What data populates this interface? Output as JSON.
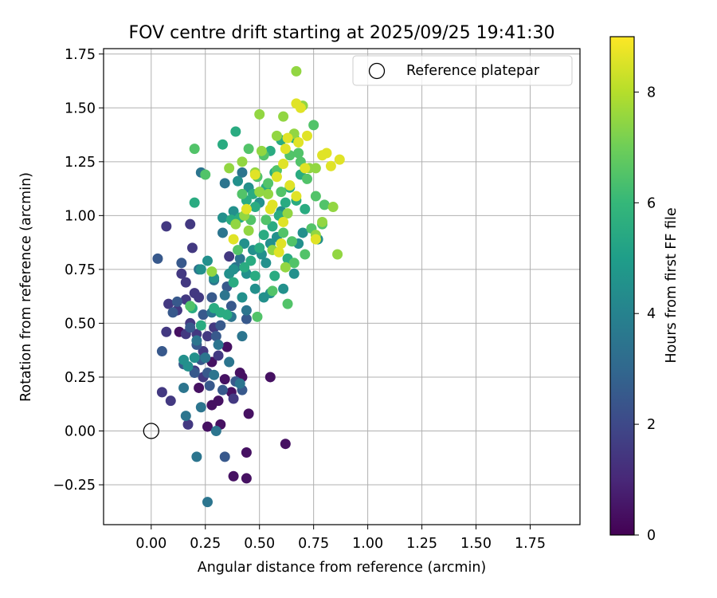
{
  "chart_data": {
    "type": "scatter",
    "title": "FOV centre drift starting at 2025/09/25 19:41:30",
    "xlabel": "Angular distance from reference (arcmin)",
    "ylabel": "Rotation from reference (arcmin)",
    "xlim": [
      -0.22,
      1.98
    ],
    "ylim": [
      -0.435,
      1.775
    ],
    "xticks": [
      0.0,
      0.25,
      0.5,
      0.75,
      1.0,
      1.25,
      1.5,
      1.75
    ],
    "xtick_labels": [
      "0.00",
      "0.25",
      "0.50",
      "0.75",
      "1.00",
      "1.25",
      "1.50",
      "1.75"
    ],
    "yticks": [
      -0.25,
      0.0,
      0.25,
      0.5,
      0.75,
      1.0,
      1.25,
      1.5,
      1.75
    ],
    "ytick_labels": [
      "−0.25",
      "0.00",
      "0.25",
      "0.50",
      "0.75",
      "1.00",
      "1.25",
      "1.50",
      "1.75"
    ],
    "grid": true,
    "legend": {
      "position": "top-right",
      "label": "Reference platepar"
    },
    "reference_point": {
      "x": 0.0,
      "y": 0.0,
      "label": "Reference platepar"
    },
    "colorbar": {
      "label": "Hours from first FF file",
      "range": [
        0,
        9
      ],
      "ticks": [
        0,
        2,
        4,
        6,
        8
      ],
      "tick_labels": [
        "0",
        "2",
        "4",
        "6",
        "8"
      ],
      "colormap": "viridis",
      "colormap_stops": [
        "#440154",
        "#482878",
        "#3e4989",
        "#31688e",
        "#26828e",
        "#1f9e89",
        "#35b779",
        "#6ece58",
        "#b5de2b",
        "#fde725"
      ]
    },
    "series": [
      {
        "name": "hours_0_1",
        "hours": 0.4,
        "points": [
          [
            0.26,
            0.02
          ],
          [
            0.28,
            0.12
          ],
          [
            0.31,
            0.14
          ],
          [
            0.32,
            0.03
          ],
          [
            0.37,
            0.18
          ],
          [
            0.38,
            -0.21
          ],
          [
            0.41,
            0.27
          ],
          [
            0.44,
            -0.22
          ],
          [
            0.44,
            -0.1
          ],
          [
            0.45,
            0.08
          ],
          [
            0.55,
            0.25
          ],
          [
            0.62,
            -0.06
          ],
          [
            0.22,
            0.2
          ],
          [
            0.34,
            0.24
          ],
          [
            0.28,
            0.32
          ],
          [
            0.35,
            0.39
          ],
          [
            0.13,
            0.46
          ],
          [
            0.42,
            0.25
          ]
        ]
      },
      {
        "name": "hours_1_2",
        "hours": 1.5,
        "points": [
          [
            0.07,
            0.95
          ],
          [
            0.18,
            0.96
          ],
          [
            0.19,
            0.85
          ],
          [
            0.14,
            0.73
          ],
          [
            0.16,
            0.69
          ],
          [
            0.2,
            0.64
          ],
          [
            0.22,
            0.62
          ],
          [
            0.08,
            0.59
          ],
          [
            0.18,
            0.5
          ],
          [
            0.21,
            0.45
          ],
          [
            0.26,
            0.44
          ],
          [
            0.05,
            0.18
          ],
          [
            0.09,
            0.14
          ],
          [
            0.17,
            0.03
          ],
          [
            0.07,
            0.46
          ],
          [
            0.16,
            0.61
          ],
          [
            0.12,
            0.56
          ],
          [
            0.36,
            0.81
          ],
          [
            0.29,
            0.48
          ],
          [
            0.24,
            0.37
          ],
          [
            0.2,
            0.28
          ],
          [
            0.24,
            0.25
          ],
          [
            0.38,
            0.15
          ],
          [
            0.31,
            0.35
          ],
          [
            0.16,
            0.45
          ]
        ]
      },
      {
        "name": "hours_2_3",
        "hours": 2.5,
        "points": [
          [
            0.03,
            0.8
          ],
          [
            0.05,
            0.37
          ],
          [
            0.1,
            0.55
          ],
          [
            0.14,
            0.78
          ],
          [
            0.18,
            0.48
          ],
          [
            0.21,
            0.4
          ],
          [
            0.23,
            0.33
          ],
          [
            0.26,
            0.27
          ],
          [
            0.28,
            0.62
          ],
          [
            0.32,
            0.49
          ],
          [
            0.34,
            -0.12
          ],
          [
            0.33,
            0.19
          ],
          [
            0.39,
            0.23
          ],
          [
            0.42,
            0.19
          ],
          [
            0.15,
            0.31
          ],
          [
            0.2,
            0.27
          ],
          [
            0.27,
            0.21
          ],
          [
            0.3,
            0.44
          ],
          [
            0.37,
            0.58
          ],
          [
            0.44,
            0.52
          ],
          [
            0.12,
            0.6
          ],
          [
            0.24,
            0.54
          ],
          [
            0.35,
            0.67
          ]
        ]
      },
      {
        "name": "hours_3_4",
        "hours": 3.5,
        "points": [
          [
            0.26,
            -0.33
          ],
          [
            0.21,
            -0.12
          ],
          [
            0.3,
            0.0
          ],
          [
            0.16,
            0.07
          ],
          [
            0.23,
            0.11
          ],
          [
            0.29,
            0.26
          ],
          [
            0.36,
            0.32
          ],
          [
            0.41,
            0.22
          ],
          [
            0.42,
            0.44
          ],
          [
            0.25,
            0.34
          ],
          [
            0.21,
            0.42
          ],
          [
            0.31,
            0.4
          ],
          [
            0.37,
            0.53
          ],
          [
            0.44,
            0.56
          ],
          [
            0.29,
            0.7
          ],
          [
            0.34,
            0.63
          ],
          [
            0.39,
            0.76
          ],
          [
            0.41,
            0.8
          ],
          [
            0.33,
            0.92
          ],
          [
            0.34,
            1.15
          ],
          [
            0.42,
            1.2
          ],
          [
            0.23,
            1.2
          ],
          [
            0.28,
            0.55
          ],
          [
            0.15,
            0.2
          ],
          [
            0.22,
            0.75
          ]
        ]
      },
      {
        "name": "hours_4_5",
        "hours": 4.5,
        "points": [
          [
            0.15,
            0.33
          ],
          [
            0.2,
            0.34
          ],
          [
            0.17,
            0.3
          ],
          [
            0.23,
            0.75
          ],
          [
            0.26,
            0.79
          ],
          [
            0.29,
            0.71
          ],
          [
            0.33,
            0.99
          ],
          [
            0.38,
            1.02
          ],
          [
            0.4,
            1.16
          ],
          [
            0.45,
            1.13
          ],
          [
            0.5,
            1.06
          ],
          [
            0.38,
            0.75
          ],
          [
            0.44,
            0.73
          ],
          [
            0.48,
            0.66
          ],
          [
            0.52,
            0.62
          ],
          [
            0.42,
            0.62
          ],
          [
            0.47,
            0.84
          ],
          [
            0.55,
            0.87
          ],
          [
            0.58,
            0.9
          ],
          [
            0.53,
            0.78
          ],
          [
            0.61,
            0.66
          ],
          [
            0.66,
            0.73
          ],
          [
            0.7,
            0.92
          ],
          [
            0.68,
            0.87
          ],
          [
            0.77,
            0.89
          ],
          [
            0.51,
            0.82
          ],
          [
            0.36,
            0.73
          ],
          [
            0.43,
            0.87
          ],
          [
            0.55,
            0.64
          ],
          [
            0.6,
            1.02
          ]
        ]
      },
      {
        "name": "hours_5_6",
        "hours": 5.5,
        "points": [
          [
            0.19,
            0.57
          ],
          [
            0.23,
            0.49
          ],
          [
            0.29,
            0.57
          ],
          [
            0.32,
            0.55
          ],
          [
            0.35,
            0.54
          ],
          [
            0.38,
            0.69
          ],
          [
            0.43,
            0.76
          ],
          [
            0.46,
            0.79
          ],
          [
            0.48,
            0.72
          ],
          [
            0.5,
            0.85
          ],
          [
            0.52,
            0.91
          ],
          [
            0.56,
            0.95
          ],
          [
            0.59,
            1.0
          ],
          [
            0.62,
            1.06
          ],
          [
            0.64,
            1.13
          ],
          [
            0.67,
            1.07
          ],
          [
            0.69,
            1.19
          ],
          [
            0.57,
            1.2
          ],
          [
            0.53,
            1.13
          ],
          [
            0.48,
            1.04
          ],
          [
            0.44,
            1.07
          ],
          [
            0.41,
            0.99
          ],
          [
            0.37,
            0.98
          ],
          [
            0.47,
            1.1
          ],
          [
            0.55,
            1.3
          ],
          [
            0.6,
            1.35
          ],
          [
            0.66,
            1.36
          ],
          [
            0.71,
            1.03
          ],
          [
            0.63,
            0.8
          ],
          [
            0.57,
            0.72
          ],
          [
            0.33,
            1.33
          ],
          [
            0.2,
            1.06
          ],
          [
            0.39,
            1.39
          ]
        ]
      },
      {
        "name": "hours_6_7",
        "hours": 6.5,
        "points": [
          [
            0.2,
            1.31
          ],
          [
            0.25,
            1.19
          ],
          [
            0.18,
            0.58
          ],
          [
            0.4,
            0.84
          ],
          [
            0.49,
            0.53
          ],
          [
            0.56,
            0.65
          ],
          [
            0.63,
            0.59
          ],
          [
            0.66,
            0.78
          ],
          [
            0.61,
            0.92
          ],
          [
            0.58,
            1.21
          ],
          [
            0.64,
            1.28
          ],
          [
            0.69,
            1.25
          ],
          [
            0.72,
            1.17
          ],
          [
            0.76,
            1.09
          ],
          [
            0.8,
            1.05
          ],
          [
            0.79,
            0.96
          ],
          [
            0.74,
            0.94
          ],
          [
            0.71,
            0.82
          ],
          [
            0.65,
            0.88
          ],
          [
            0.53,
            0.98
          ],
          [
            0.46,
            0.98
          ],
          [
            0.42,
            1.1
          ],
          [
            0.49,
            1.18
          ],
          [
            0.52,
            1.28
          ],
          [
            0.6,
            1.11
          ],
          [
            0.75,
            1.42
          ],
          [
            0.68,
            1.29
          ],
          [
            0.54,
            1.15
          ],
          [
            0.45,
            1.31
          ]
        ]
      },
      {
        "name": "hours_7_8",
        "hours": 7.5,
        "points": [
          [
            0.28,
            0.74
          ],
          [
            0.36,
            1.22
          ],
          [
            0.42,
            1.25
          ],
          [
            0.48,
            1.2
          ],
          [
            0.5,
            1.47
          ],
          [
            0.51,
            1.3
          ],
          [
            0.54,
            1.1
          ],
          [
            0.58,
            1.37
          ],
          [
            0.61,
            1.46
          ],
          [
            0.63,
            1.01
          ],
          [
            0.66,
            1.38
          ],
          [
            0.67,
            1.67
          ],
          [
            0.7,
            1.51
          ],
          [
            0.73,
            1.22
          ],
          [
            0.76,
            1.22
          ],
          [
            0.79,
            0.97
          ],
          [
            0.84,
            1.04
          ],
          [
            0.86,
            0.82
          ],
          [
            0.76,
            0.91
          ],
          [
            0.62,
            0.76
          ],
          [
            0.56,
            0.84
          ],
          [
            0.45,
            0.93
          ],
          [
            0.43,
            1.0
          ],
          [
            0.39,
            0.96
          ],
          [
            0.5,
            1.11
          ]
        ]
      },
      {
        "name": "hours_8_9",
        "hours": 8.6,
        "points": [
          [
            0.44,
            1.03
          ],
          [
            0.38,
            0.89
          ],
          [
            0.55,
            1.03
          ],
          [
            0.59,
            0.83
          ],
          [
            0.6,
            0.87
          ],
          [
            0.61,
            0.97
          ],
          [
            0.62,
            1.31
          ],
          [
            0.63,
            1.36
          ],
          [
            0.68,
            1.34
          ],
          [
            0.67,
            1.52
          ],
          [
            0.69,
            1.5
          ],
          [
            0.72,
            1.37
          ],
          [
            0.71,
            1.22
          ],
          [
            0.67,
            1.09
          ],
          [
            0.79,
            1.28
          ],
          [
            0.81,
            1.29
          ],
          [
            0.83,
            1.23
          ],
          [
            0.87,
            1.26
          ],
          [
            0.58,
            1.18
          ],
          [
            0.64,
            1.14
          ],
          [
            0.56,
            1.05
          ],
          [
            0.48,
            1.19
          ],
          [
            0.76,
            0.89
          ],
          [
            0.61,
            1.24
          ]
        ]
      }
    ]
  }
}
